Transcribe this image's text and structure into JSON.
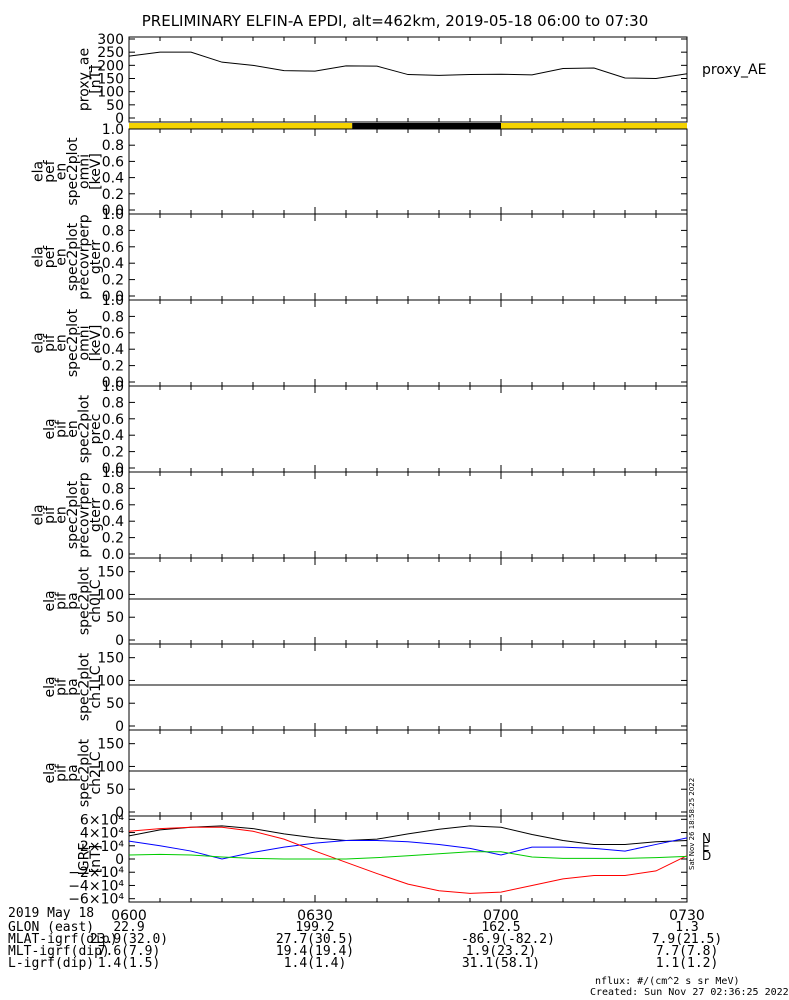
{
  "title": "PRELIMINARY ELFIN-A EPDI, alt=462km, 2019-05-18 06:00 to 07:30",
  "chart_data": [
    {
      "type": "line",
      "name": "proxy_ae_panel",
      "ylabel": [
        "proxy_ae",
        "[nT]"
      ],
      "yticks": [
        "0",
        "50",
        "100",
        "150",
        "200",
        "250",
        "300"
      ],
      "ylim": [
        0,
        300
      ],
      "legend": "proxy_AE",
      "x_minutes": [
        0,
        5,
        10,
        15,
        20,
        25,
        30,
        35,
        40,
        45,
        50,
        55,
        60,
        65,
        70,
        75,
        80,
        85,
        90
      ],
      "values": [
        235,
        250,
        250,
        212,
        200,
        180,
        178,
        198,
        197,
        165,
        162,
        165,
        166,
        164,
        188,
        190,
        152,
        150,
        168
      ]
    },
    {
      "type": "bar",
      "name": "orbit_bar",
      "segments": [
        {
          "from": 0,
          "to": 36,
          "color": "#f5d300"
        },
        {
          "from": 36,
          "to": 60,
          "color": "#000000"
        },
        {
          "from": 60,
          "to": 90,
          "color": "#f5d300"
        }
      ]
    },
    {
      "type": "line",
      "name": "ela_pef_omni",
      "ylabel": [
        "ela",
        "pef",
        "en",
        "spec2plot",
        "omni",
        "[keV]"
      ],
      "yticks": [
        "0.0",
        "0.2",
        "0.4",
        "0.6",
        "0.8",
        "1.0"
      ],
      "ylim": [
        0,
        1
      ]
    },
    {
      "type": "line",
      "name": "ela_pef_precovrperp",
      "ylabel": [
        "ela",
        "pef",
        "en",
        "spec2plot",
        "precovrperp",
        "gterr"
      ],
      "yticks": [
        "0.0",
        "0.2",
        "0.4",
        "0.6",
        "0.8",
        "1.0"
      ],
      "ylim": [
        0,
        1
      ]
    },
    {
      "type": "line",
      "name": "ela_pif_omni",
      "ylabel": [
        "ela",
        "pif",
        "en",
        "spec2plot",
        "omni",
        "[keV]"
      ],
      "yticks": [
        "0.0",
        "0.2",
        "0.4",
        "0.6",
        "0.8",
        "1.0"
      ],
      "ylim": [
        0,
        1
      ]
    },
    {
      "type": "line",
      "name": "ela_pif_prec",
      "ylabel": [
        "ela",
        "pif",
        "en",
        "spec2plot",
        "prec"
      ],
      "yticks": [
        "0.0",
        "0.2",
        "0.4",
        "0.6",
        "0.8",
        "1.0"
      ],
      "ylim": [
        0,
        1
      ]
    },
    {
      "type": "line",
      "name": "ela_pif_precovrperp",
      "ylabel": [
        "ela",
        "pif",
        "en",
        "spec2plot",
        "precovrperp",
        "gterr"
      ],
      "yticks": [
        "0.0",
        "0.2",
        "0.4",
        "0.6",
        "0.8",
        "1.0"
      ],
      "ylim": [
        0,
        1
      ]
    },
    {
      "type": "line",
      "name": "ela_pif_pa_ch0LC",
      "ylabel": [
        "ela",
        "pif",
        "pa",
        "spec2plot",
        "ch0LC"
      ],
      "yticks": [
        "0",
        "50",
        "100",
        "150"
      ],
      "ylim": [
        0,
        180
      ],
      "hline": 90
    },
    {
      "type": "line",
      "name": "ela_pif_pa_ch1LC",
      "ylabel": [
        "ela",
        "pif",
        "pa",
        "spec2plot",
        "ch1LC"
      ],
      "yticks": [
        "0",
        "50",
        "100",
        "150"
      ],
      "ylim": [
        0,
        180
      ],
      "hline": 90
    },
    {
      "type": "line",
      "name": "ela_pif_pa_ch2LC",
      "ylabel": [
        "ela",
        "pif",
        "pa",
        "spec2plot",
        "ch2LC"
      ],
      "yticks": [
        "0",
        "50",
        "100",
        "150"
      ],
      "ylim": [
        0,
        180
      ],
      "hline": 90
    },
    {
      "type": "line",
      "name": "igrf_panel",
      "ylabel": [
        "IGRF",
        "[nT]"
      ],
      "yticks": [
        "−6×10⁴",
        "−4×10⁴",
        "−2×10⁴",
        "0",
        "2×10⁴",
        "4×10⁴",
        "6×10⁴"
      ],
      "ytick_values": [
        -60000,
        -40000,
        -20000,
        0,
        20000,
        40000,
        60000
      ],
      "ylim": [
        -65000,
        65000
      ],
      "x_minutes": [
        0,
        5,
        10,
        15,
        20,
        25,
        30,
        35,
        40,
        45,
        50,
        55,
        60,
        65,
        70,
        75,
        80,
        85,
        90
      ],
      "series": [
        {
          "name": "N",
          "color": "#000000",
          "values": [
            35000,
            44000,
            48000,
            50000,
            46000,
            38000,
            32000,
            28000,
            30000,
            38000,
            45000,
            50000,
            48000,
            37000,
            28000,
            22000,
            22000,
            26000,
            28000
          ]
        },
        {
          "name": "E",
          "color": "#0000ff",
          "values": [
            27000,
            20000,
            12000,
            0,
            10000,
            18000,
            24000,
            28000,
            28000,
            26000,
            22000,
            16000,
            6000,
            18000,
            18000,
            16000,
            12000,
            22000,
            32000
          ]
        },
        {
          "name": "D",
          "color": "#ff0000",
          "values": [
            42000,
            46000,
            48000,
            48000,
            42000,
            30000,
            12000,
            -5000,
            -22000,
            -38000,
            -48000,
            -52000,
            -50000,
            -40000,
            -30000,
            -25000,
            -25000,
            -18000,
            5000
          ]
        },
        {
          "name": "",
          "color": "#00cc00",
          "values": [
            6000,
            7000,
            6000,
            3000,
            1000,
            0,
            0,
            0,
            2000,
            5000,
            8000,
            11000,
            11000,
            3000,
            1000,
            1000,
            1000,
            2000,
            4000
          ]
        }
      ],
      "side_labels": [
        "N",
        "E",
        "D"
      ],
      "side_text": "Sat Nov 26 18:58:25 2022"
    }
  ],
  "xaxis": {
    "row_label": "2019 May 18",
    "ticks": [
      "0600",
      "0630",
      "0700",
      "0730"
    ]
  },
  "ephemeris": [
    {
      "label": "GLON (east)",
      "values": [
        "22.9",
        "199.2",
        "162.5",
        "1.3"
      ]
    },
    {
      "label": "MLAT-igrf(dip)",
      "values": [
        "23.9(32.0)",
        "27.7(30.5)",
        "-86.9(-82.2)",
        "7.9(21.5)"
      ]
    },
    {
      "label": "MLT-igrf(dip)",
      "values": [
        "7.6(7.9)",
        "19.4(19.4)",
        "1.9(23.2)",
        "7.7(7.8)"
      ]
    },
    {
      "label": "L-igrf(dip)",
      "values": [
        "1.4(1.5)",
        "1.4(1.4)",
        "31.1(58.1)",
        "1.1(1.2)"
      ]
    }
  ],
  "footer": {
    "units": "nflux: #/(cm^2 s sr MeV)",
    "created": "Created: Sun Nov 27 02:36:25 2022"
  }
}
